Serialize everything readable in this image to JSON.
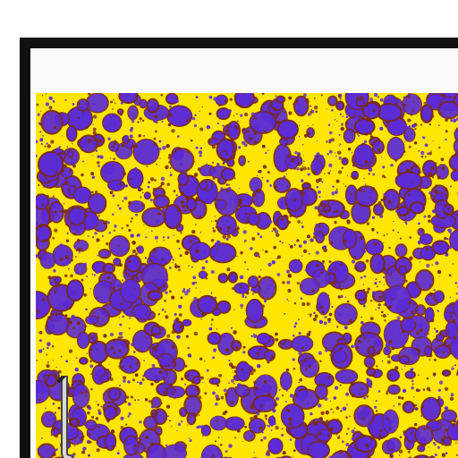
{
  "scene": {
    "subject": "",
    "colors": {
      "background": "#ffffff",
      "frame": "#111111",
      "field": "#ffe600",
      "blob": "#5b2bd6",
      "blob_edge": "#7a2a16"
    }
  },
  "blobs": {
    "count_big": 520,
    "count_small": 2200
  }
}
